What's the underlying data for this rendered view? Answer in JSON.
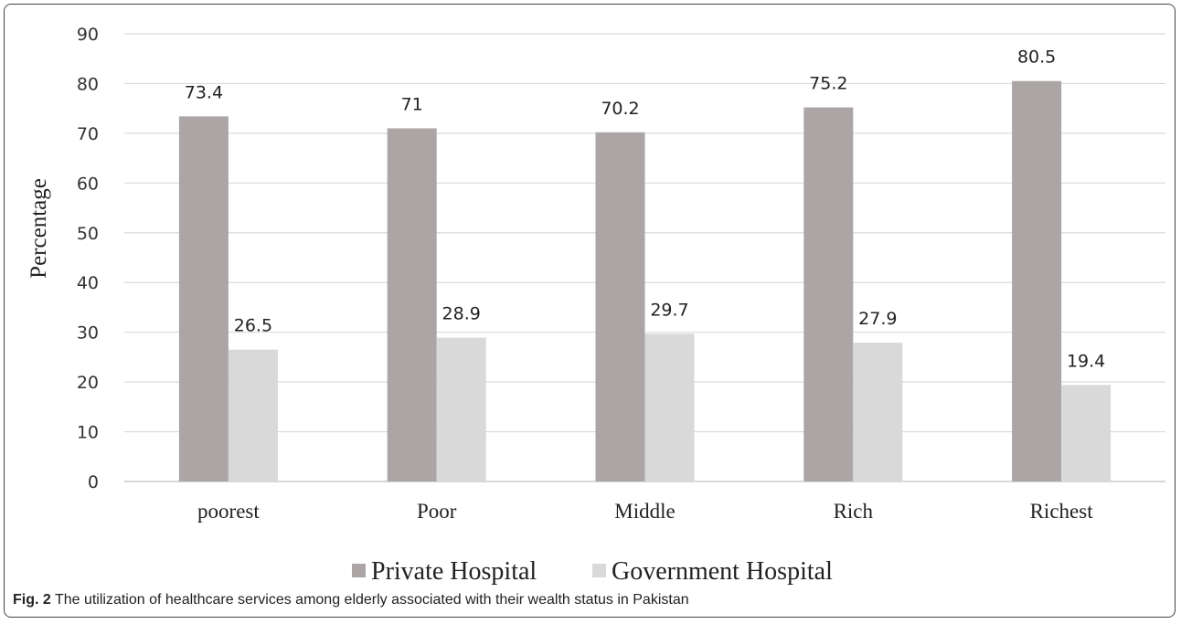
{
  "chart_data": {
    "type": "bar",
    "categories": [
      "poorest",
      "Poor",
      "Middle",
      "Rich",
      "Richest"
    ],
    "series": [
      {
        "name": "Private Hospital",
        "values": [
          73.4,
          71,
          70.2,
          75.2,
          80.5
        ],
        "color": "#aba6a5"
      },
      {
        "name": "Government Hospital",
        "values": [
          26.5,
          28.9,
          29.7,
          27.9,
          19.4
        ],
        "color": "#d9d9d9"
      }
    ],
    "ylabel": "Percentage",
    "ylim": [
      0,
      90
    ],
    "yticks": [
      0,
      10,
      20,
      30,
      40,
      50,
      60,
      70,
      80,
      90
    ],
    "grid": true,
    "legend": "bottom"
  },
  "caption": {
    "label": "Fig. 2",
    "text": "The utilization of healthcare services among elderly associated with their wealth status in Pakistan"
  }
}
